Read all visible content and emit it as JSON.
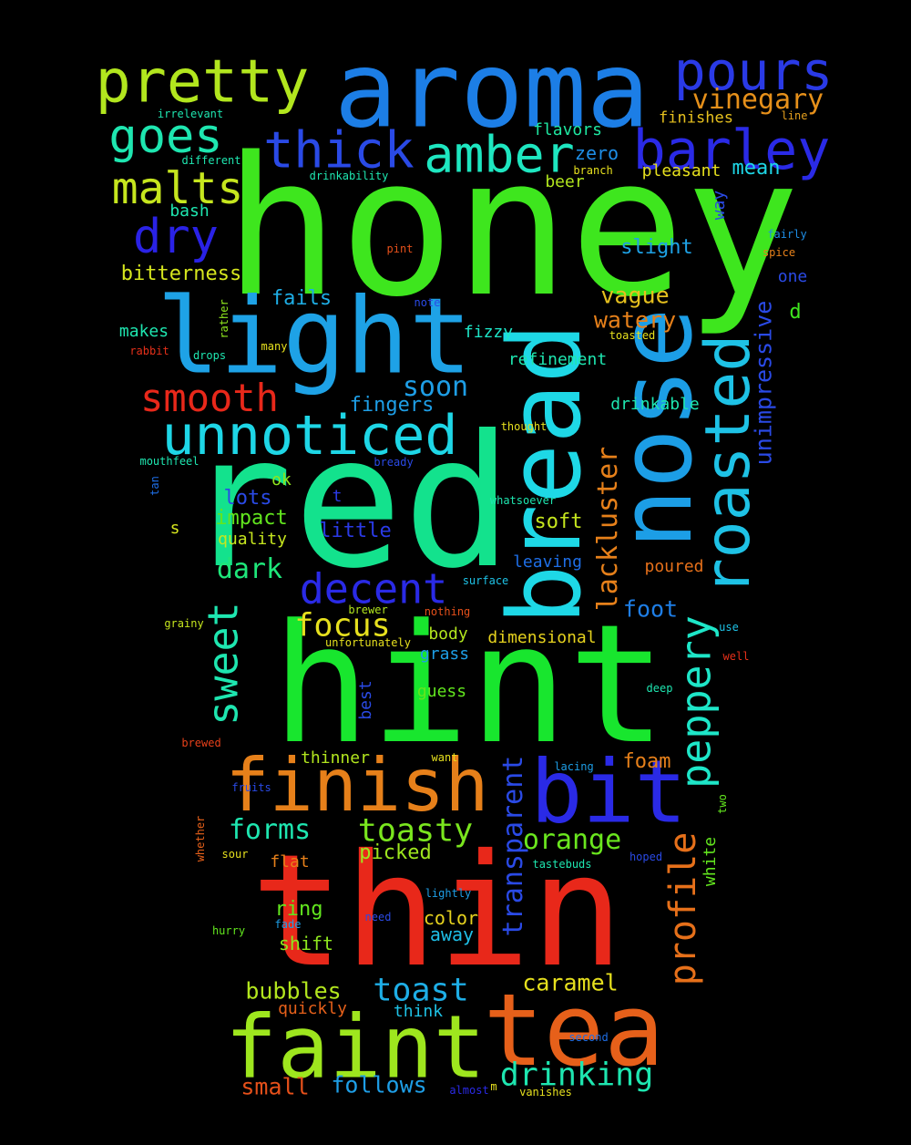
{
  "words": [
    {
      "text": "honey",
      "color": "#3ee61e"
    },
    {
      "text": "red",
      "color": "#13e28d"
    },
    {
      "text": "hint",
      "color": "#18e62e"
    },
    {
      "text": "thin",
      "color": "#e8281a"
    },
    {
      "text": "light",
      "color": "#1ea2e6"
    },
    {
      "text": "aroma",
      "color": "#1c7ee6"
    },
    {
      "text": "tea",
      "color": "#e6601a"
    },
    {
      "text": "nose",
      "color": "#1c9ee6"
    },
    {
      "text": "bread",
      "color": "#1ed8e6"
    },
    {
      "text": "faint",
      "color": "#9ee61e"
    },
    {
      "text": "finish",
      "color": "#e6801a"
    },
    {
      "text": "bit",
      "color": "#2a2ae6"
    },
    {
      "text": "pretty",
      "color": "#b2e61e"
    },
    {
      "text": "pours",
      "color": "#2a3ae6"
    },
    {
      "text": "roasted",
      "color": "#1ec2e6"
    },
    {
      "text": "unnoticed",
      "color": "#1ed6e6"
    },
    {
      "text": "barley",
      "color": "#2a2ae6"
    },
    {
      "text": "amber",
      "color": "#1ee6c0"
    },
    {
      "text": "thick",
      "color": "#2a4ae6"
    },
    {
      "text": "goes",
      "color": "#1ee6b0"
    },
    {
      "text": "malts",
      "color": "#c6e61e"
    },
    {
      "text": "dry",
      "color": "#2a22e6"
    },
    {
      "text": "smooth",
      "color": "#e8281a"
    },
    {
      "text": "decent",
      "color": "#2a2ae6"
    },
    {
      "text": "sweet",
      "color": "#1ee6b0"
    },
    {
      "text": "peppery",
      "color": "#1ee6c8"
    },
    {
      "text": "profile",
      "color": "#e6701a"
    },
    {
      "text": "vinegary",
      "color": "#e6901a"
    },
    {
      "text": "focus",
      "color": "#e6e01e"
    },
    {
      "text": "lackluster",
      "color": "#e6801a"
    },
    {
      "text": "transparent",
      "color": "#2a4ae6"
    },
    {
      "text": "toasty",
      "color": "#7ae61e"
    },
    {
      "text": "drinking",
      "color": "#1ee6b0"
    },
    {
      "text": "toast",
      "color": "#1eaee6"
    },
    {
      "text": "unimpressive",
      "color": "#2a4ae6"
    },
    {
      "text": "forms",
      "color": "#1ee6b0"
    },
    {
      "text": "orange",
      "color": "#6ae61e"
    },
    {
      "text": "soon",
      "color": "#1e9ee6"
    },
    {
      "text": "bitterness",
      "color": "#d6e61e"
    },
    {
      "text": "fingers",
      "color": "#1e9ee6"
    },
    {
      "text": "dark",
      "color": "#1ee67a"
    },
    {
      "text": "caramel",
      "color": "#e6e01e"
    },
    {
      "text": "bubbles",
      "color": "#b2e61e"
    },
    {
      "text": "follows",
      "color": "#1e9ee6"
    },
    {
      "text": "small",
      "color": "#e6501a"
    },
    {
      "text": "foot",
      "color": "#1e7ee6"
    },
    {
      "text": "vague",
      "color": "#e6c01e"
    },
    {
      "text": "watery",
      "color": "#e6801a"
    },
    {
      "text": "slight",
      "color": "#1ea2e6"
    },
    {
      "text": "fails",
      "color": "#1eaee6"
    },
    {
      "text": "soft",
      "color": "#c6e61e"
    },
    {
      "text": "lots",
      "color": "#2a4ae6"
    },
    {
      "text": "impact",
      "color": "#62e61e"
    },
    {
      "text": "little",
      "color": "#2a3ae6"
    },
    {
      "text": "foam",
      "color": "#e6801a"
    },
    {
      "text": "picked",
      "color": "#9ee61e"
    },
    {
      "text": "ring",
      "color": "#62e61e"
    },
    {
      "text": "shift",
      "color": "#8ee61e"
    },
    {
      "text": "away",
      "color": "#1ebee6"
    },
    {
      "text": "color",
      "color": "#e6d21e"
    },
    {
      "text": "mean",
      "color": "#1ed6e6"
    },
    {
      "text": "pleasant",
      "color": "#e6e01e"
    },
    {
      "text": "zero",
      "color": "#1e8ee6"
    },
    {
      "text": "flavors",
      "color": "#1ee6a0"
    },
    {
      "text": "beer",
      "color": "#b2e61e"
    },
    {
      "text": "finishes",
      "color": "#e6c01e"
    },
    {
      "text": "makes",
      "color": "#1ee6b0"
    },
    {
      "text": "quality",
      "color": "#c6e61e"
    },
    {
      "text": "thinner",
      "color": "#b2e61e"
    },
    {
      "text": "flat",
      "color": "#e6801a"
    },
    {
      "text": "best",
      "color": "#2a4ae6"
    },
    {
      "text": "guess",
      "color": "#62e61e"
    },
    {
      "text": "grass",
      "color": "#1e9ee6"
    },
    {
      "text": "body",
      "color": "#b2e61e"
    },
    {
      "text": "dimensional",
      "color": "#e6d21e"
    },
    {
      "text": "poured",
      "color": "#e6701a"
    },
    {
      "text": "leaving",
      "color": "#1e6ee6"
    },
    {
      "text": "refinement",
      "color": "#1ee6b0"
    },
    {
      "text": "fizzy",
      "color": "#1ee6c8"
    },
    {
      "text": "drinkable",
      "color": "#1ee6b0"
    },
    {
      "text": "white",
      "color": "#62e61e"
    },
    {
      "text": "quickly",
      "color": "#e6601a"
    },
    {
      "text": "think",
      "color": "#1ec2e6"
    },
    {
      "text": "way",
      "color": "#2a4ae6"
    },
    {
      "text": "one",
      "color": "#2a4ae6"
    },
    {
      "text": "d",
      "color": "#3ee61e"
    },
    {
      "text": "ok",
      "color": "#8ee61e"
    },
    {
      "text": "s",
      "color": "#d6e61e"
    },
    {
      "text": "t",
      "color": "#2a3ae6"
    },
    {
      "text": "bash",
      "color": "#1ee6b0"
    },
    {
      "text": "irrelevant",
      "color": "#1ee6b0"
    },
    {
      "text": "different",
      "color": "#1ee6b0"
    },
    {
      "text": "drinkability",
      "color": "#1ee6b0"
    },
    {
      "text": "branch",
      "color": "#e6e01e"
    },
    {
      "text": "line",
      "color": "#e6a01e"
    },
    {
      "text": "fairly",
      "color": "#1e8ee6"
    },
    {
      "text": "spice",
      "color": "#e6801a"
    },
    {
      "text": "pint",
      "color": "#e6501a"
    },
    {
      "text": "note",
      "color": "#2a4ae6"
    },
    {
      "text": "rather",
      "color": "#8ee61e"
    },
    {
      "text": "rabbit",
      "color": "#e6301a"
    },
    {
      "text": "drops",
      "color": "#1ee6b0"
    },
    {
      "text": "many",
      "color": "#e6e01e"
    },
    {
      "text": "toasted",
      "color": "#e6e01e"
    },
    {
      "text": "thought",
      "color": "#e6e01e"
    },
    {
      "text": "mouthfeel",
      "color": "#1ee6b0"
    },
    {
      "text": "bready",
      "color": "#2a4ae6"
    },
    {
      "text": "tan",
      "color": "#1e6ee6"
    },
    {
      "text": "whatsoever",
      "color": "#1ee6b0"
    },
    {
      "text": "surface",
      "color": "#1ec2e6"
    },
    {
      "text": "brewer",
      "color": "#b2e61e"
    },
    {
      "text": "nothing",
      "color": "#e6501a"
    },
    {
      "text": "grainy",
      "color": "#c6e61e"
    },
    {
      "text": "unfortunately",
      "color": "#e6e01e"
    },
    {
      "text": "use",
      "color": "#1ec2e6"
    },
    {
      "text": "well",
      "color": "#e6301a"
    },
    {
      "text": "deep",
      "color": "#1ee6b0"
    },
    {
      "text": "brewed",
      "color": "#e6401a"
    },
    {
      "text": "want",
      "color": "#e6e01e"
    },
    {
      "text": "lacing",
      "color": "#1e9ee6"
    },
    {
      "text": "fruits",
      "color": "#2a4ae6"
    },
    {
      "text": "two",
      "color": "#62e61e"
    },
    {
      "text": "whether",
      "color": "#e6601a"
    },
    {
      "text": "sour",
      "color": "#e6e01e"
    },
    {
      "text": "tastebuds",
      "color": "#1ee6b0"
    },
    {
      "text": "hoped",
      "color": "#2a4ae6"
    },
    {
      "text": "lightly",
      "color": "#1e9ee6"
    },
    {
      "text": "hurry",
      "color": "#62e61e"
    },
    {
      "text": "fade",
      "color": "#1e9ee6"
    },
    {
      "text": "need",
      "color": "#2a4ae6"
    },
    {
      "text": "second",
      "color": "#1e6ee6"
    },
    {
      "text": "almost",
      "color": "#2a2ae6"
    },
    {
      "text": "m",
      "color": "#e6e01e"
    },
    {
      "text": "vanishes",
      "color": "#e6e01e"
    }
  ]
}
